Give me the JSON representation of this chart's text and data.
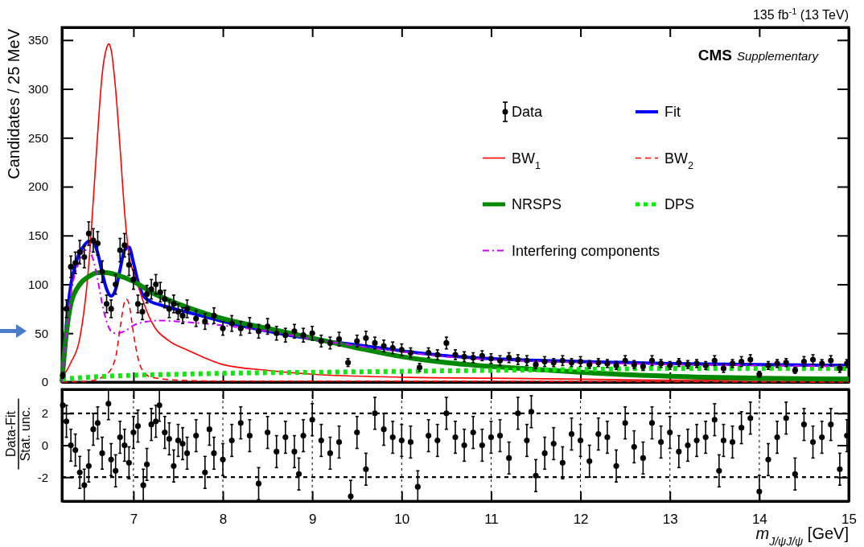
{
  "chart_data": [
    {
      "type": "line",
      "ylabel": "Candidates / 25 MeV",
      "xlim": [
        6.2,
        15
      ],
      "xticks": [
        7,
        8,
        9,
        10,
        11,
        12,
        13,
        14,
        15
      ],
      "ylim": [
        0,
        363
      ],
      "yticks": [
        0,
        50,
        100,
        150,
        200,
        250,
        300,
        350
      ],
      "tick_labels": "y",
      "legend": "top right",
      "annotations": [
        "135 fb$^{-1}$ (13 TeV)",
        "CMS",
        "Supplementary"
      ],
      "series": [
        {
          "name": "Data",
          "type": "scatter",
          "marker": "circle",
          "color": "#000000",
          "x": [
            6.21,
            6.25,
            6.3,
            6.35,
            6.4,
            6.45,
            6.5,
            6.55,
            6.6,
            6.65,
            6.7,
            6.75,
            6.8,
            6.85,
            6.9,
            6.95,
            7.0,
            7.05,
            7.1,
            7.15,
            7.2,
            7.25,
            7.3,
            7.35,
            7.4,
            7.45,
            7.5,
            7.55,
            7.6,
            7.7,
            7.8,
            7.9,
            8.0,
            8.1,
            8.2,
            8.3,
            8.4,
            8.5,
            8.6,
            8.7,
            8.8,
            8.9,
            9.0,
            9.1,
            9.2,
            9.3,
            9.4,
            9.5,
            9.6,
            9.7,
            9.8,
            9.9,
            10.0,
            10.1,
            10.2,
            10.3,
            10.4,
            10.5,
            10.6,
            10.7,
            10.8,
            10.9,
            11.0,
            11.1,
            11.2,
            11.3,
            11.4,
            11.5,
            11.6,
            11.7,
            11.8,
            11.9,
            12.0,
            12.1,
            12.2,
            12.3,
            12.4,
            12.5,
            12.6,
            12.7,
            12.8,
            12.9,
            13.0,
            13.1,
            13.2,
            13.3,
            13.4,
            13.5,
            13.6,
            13.7,
            13.8,
            13.9,
            14.0,
            14.1,
            14.2,
            14.3,
            14.4,
            14.5,
            14.6,
            14.7,
            14.8,
            14.9,
            14.98
          ],
          "values": [
            7,
            75,
            118,
            122,
            133,
            128,
            152,
            145,
            142,
            113,
            80,
            75,
            100,
            135,
            140,
            120,
            105,
            80,
            72,
            90,
            95,
            100,
            92,
            85,
            75,
            80,
            72,
            68,
            75,
            65,
            62,
            68,
            55,
            60,
            55,
            58,
            52,
            57,
            50,
            48,
            52,
            48,
            50,
            42,
            40,
            44,
            20,
            42,
            45,
            40,
            37,
            35,
            33,
            30,
            15,
            30,
            28,
            40,
            28,
            26,
            25,
            27,
            24,
            22,
            25,
            23,
            22,
            18,
            21,
            20,
            22,
            20,
            21,
            18,
            20,
            19,
            17,
            22,
            18,
            16,
            22,
            19,
            17,
            20,
            18,
            19,
            17,
            22,
            14,
            19,
            21,
            23,
            8,
            17,
            19,
            20,
            12,
            21,
            23,
            19,
            22,
            14,
            19
          ],
          "errors": [
            3,
            9,
            11,
            11,
            12,
            11,
            12,
            12,
            12,
            11,
            9,
            9,
            10,
            12,
            12,
            11,
            10,
            9,
            8,
            9,
            10,
            10,
            10,
            9,
            9,
            9,
            8,
            8,
            9,
            8,
            8,
            8,
            7,
            8,
            7,
            8,
            7,
            8,
            7,
            7,
            7,
            7,
            7,
            6,
            6,
            7,
            4,
            6,
            7,
            6,
            6,
            6,
            6,
            5,
            4,
            5,
            5,
            6,
            5,
            5,
            5,
            5,
            5,
            5,
            5,
            5,
            5,
            4,
            5,
            4,
            5,
            4,
            5,
            4,
            4,
            4,
            4,
            5,
            4,
            4,
            5,
            4,
            4,
            4,
            4,
            4,
            4,
            5,
            4,
            4,
            5,
            5,
            3,
            4,
            4,
            4,
            3,
            5,
            5,
            4,
            5,
            4,
            4
          ]
        },
        {
          "name": "Fit",
          "type": "line",
          "line_style": "solid",
          "color": "#0000ff",
          "x": [
            6.2,
            6.25,
            6.3,
            6.35,
            6.4,
            6.45,
            6.5,
            6.55,
            6.6,
            6.65,
            6.7,
            6.75,
            6.8,
            6.85,
            6.9,
            6.95,
            7.0,
            7.05,
            7.1,
            7.2,
            7.3,
            7.5,
            7.75,
            8.0,
            8.5,
            9.0,
            9.5,
            10.0,
            10.5,
            11,
            12,
            13,
            14,
            15
          ],
          "values": [
            0,
            60,
            100,
            120,
            133,
            140,
            144,
            143,
            132,
            112,
            95,
            88,
            95,
            115,
            135,
            138,
            122,
            103,
            90,
            82,
            79,
            74,
            68,
            62,
            52,
            44,
            38,
            32,
            27,
            24,
            21,
            19,
            18,
            17
          ]
        },
        {
          "name": "BW$_{1}$",
          "type": "line",
          "line_style": "solid",
          "color": "#ff0000",
          "x": [
            6.2,
            6.3,
            6.4,
            6.5,
            6.55,
            6.6,
            6.65,
            6.7,
            6.725,
            6.75,
            6.8,
            6.85,
            6.9,
            6.95,
            7.0,
            7.05,
            7.1,
            7.2,
            7.4,
            7.6,
            8.0,
            8.5,
            9,
            10,
            11,
            12,
            13,
            14,
            15
          ],
          "values": [
            4,
            20,
            45,
            120,
            185,
            255,
            315,
            342,
            346,
            340,
            300,
            240,
            175,
            130,
            112,
            100,
            85,
            62,
            42,
            33,
            18,
            12,
            8,
            5,
            4,
            3,
            2,
            2,
            1
          ]
        },
        {
          "name": "BW$_{2}$",
          "type": "line",
          "line_style": "dashed",
          "color": "#ff0000",
          "x": [
            6.2,
            6.5,
            6.7,
            6.8,
            6.85,
            6.9,
            6.92,
            6.95,
            7.0,
            7.05,
            7.1,
            7.2,
            7.5,
            8,
            9,
            15
          ],
          "values": [
            0,
            1,
            8,
            25,
            55,
            82,
            85,
            80,
            50,
            25,
            12,
            5,
            2,
            1,
            1,
            0
          ]
        },
        {
          "name": "NRSPS",
          "type": "line",
          "line_style": "solid",
          "color": "#008800",
          "x": [
            6.2,
            6.25,
            6.3,
            6.4,
            6.5,
            6.6,
            6.7,
            6.8,
            7.0,
            7.2,
            7.5,
            8.0,
            8.5,
            9.0,
            9.5,
            10.0,
            10.5,
            11,
            11.5,
            12,
            13,
            14,
            15
          ],
          "values": [
            0,
            50,
            80,
            100,
            108,
            112,
            112,
            110,
            103,
            92,
            80,
            65,
            55,
            45,
            35,
            26,
            20,
            16,
            13,
            10,
            6,
            4,
            3
          ]
        },
        {
          "name": "DPS",
          "type": "line",
          "line_style": "dotted",
          "color": "#00ee00",
          "x": [
            6.2,
            6.5,
            7.0,
            7.5,
            8.0,
            9,
            10,
            11,
            12,
            13,
            14,
            15
          ],
          "values": [
            3,
            5,
            7,
            8,
            9,
            10,
            11,
            12,
            13,
            14,
            14,
            14
          ]
        },
        {
          "name": "Interfering components",
          "type": "line",
          "line_style": "dashdot",
          "color": "#cc00ff",
          "x": [
            6.2,
            6.3,
            6.4,
            6.45,
            6.5,
            6.55,
            6.6,
            6.65,
            6.7,
            6.75,
            6.8,
            6.9,
            7.0,
            7.1,
            7.3,
            7.5,
            8,
            8.5,
            9,
            9.5,
            10,
            10.5,
            11,
            12,
            13,
            14,
            15
          ],
          "values": [
            0,
            90,
            125,
            135,
            135,
            125,
            105,
            80,
            62,
            52,
            50,
            52,
            58,
            61,
            63,
            62,
            58,
            52,
            44,
            37,
            31,
            26,
            23,
            20,
            18,
            17,
            16
          ]
        }
      ]
    },
    {
      "type": "scatter",
      "marker": "circle",
      "xlabel": "m$_{J/ψJ/ψ}$ [GeV]",
      "ylabel": "Data-Fit\nStat. unc.",
      "xlim": [
        6.2,
        15
      ],
      "xticks": [
        7,
        8,
        9,
        10,
        11,
        12,
        13,
        14,
        15
      ],
      "ylim": [
        -3.5,
        3.5
      ],
      "yticks": [
        -2,
        0,
        2
      ],
      "grid": "x",
      "ref_lines": [
        {
          "axis": "y",
          "value": 2,
          "line_style": "dotted"
        },
        {
          "axis": "y",
          "value": -2,
          "line_style": "dotted"
        }
      ],
      "series": [
        {
          "color": "#000000",
          "x": [
            6.21,
            6.25,
            6.3,
            6.35,
            6.4,
            6.45,
            6.5,
            6.55,
            6.6,
            6.65,
            6.72,
            6.75,
            6.8,
            6.85,
            6.9,
            6.95,
            7.0,
            7.05,
            7.11,
            7.15,
            7.2,
            7.25,
            7.29,
            7.35,
            7.4,
            7.45,
            7.5,
            7.55,
            7.6,
            7.7,
            7.8,
            7.85,
            7.9,
            8.0,
            8.1,
            8.2,
            8.3,
            8.4,
            8.5,
            8.6,
            8.7,
            8.8,
            8.85,
            8.9,
            9.0,
            9.1,
            9.2,
            9.3,
            9.43,
            9.5,
            9.6,
            9.7,
            9.8,
            9.9,
            10.0,
            10.1,
            10.18,
            10.3,
            10.4,
            10.5,
            10.6,
            10.7,
            10.8,
            10.9,
            11.0,
            11.1,
            11.2,
            11.3,
            11.4,
            11.45,
            11.5,
            11.6,
            11.7,
            11.8,
            11.9,
            12.0,
            12.1,
            12.2,
            12.3,
            12.4,
            12.5,
            12.6,
            12.7,
            12.8,
            12.9,
            13.0,
            13.1,
            13.2,
            13.3,
            13.4,
            13.5,
            13.55,
            13.6,
            13.7,
            13.8,
            13.9,
            14.0,
            14.1,
            14.2,
            14.3,
            14.4,
            14.5,
            14.6,
            14.7,
            14.8,
            14.9,
            14.98
          ],
          "values": [
            2.5,
            1.5,
            0,
            -0.3,
            -1.7,
            -2.5,
            -1.3,
            1.0,
            1.4,
            -0.5,
            2.6,
            -0.9,
            -1.6,
            0.5,
            0,
            -1.1,
            0.8,
            1.2,
            -2.5,
            -1.2,
            1.3,
            1.5,
            2.5,
            0.8,
            0.4,
            -1.3,
            0.3,
            0.1,
            -0.5,
            0.6,
            -1.7,
            1.0,
            -0.5,
            -0.9,
            0.3,
            1.4,
            0.6,
            -2.4,
            0.8,
            -0.4,
            0.5,
            -0.4,
            -1.8,
            0.6,
            1.6,
            0.3,
            -0.5,
            0.2,
            -3.2,
            0.8,
            -1.5,
            2.0,
            1.0,
            0.5,
            0.3,
            0.2,
            -2.6,
            0.6,
            0.3,
            2.0,
            0.5,
            0,
            0.8,
            0,
            0.5,
            0.6,
            -0.8,
            2.0,
            0.3,
            2.1,
            -1.9,
            -0.5,
            0.1,
            -1.1,
            0.7,
            0.3,
            -1.0,
            0.7,
            0.5,
            -1.3,
            1.4,
            -0.1,
            -0.8,
            1.4,
            0.2,
            0.8,
            -0.4,
            0,
            0.3,
            0.5,
            1.6,
            -1.6,
            0.3,
            0.2,
            1.1,
            1.7,
            -2.9,
            -0.9,
            0.5,
            1.7,
            -1.8,
            1.3,
            0.2,
            0.5,
            1.3,
            -1.5,
            0.6
          ],
          "errors": [
            1,
            1,
            1,
            1,
            1,
            1,
            1,
            1,
            1,
            1,
            [
              1.6,
              3.5
            ],
            1,
            1,
            1,
            1,
            1,
            1,
            1,
            1,
            1,
            1,
            1,
            1,
            1,
            1,
            1,
            1,
            1,
            1,
            1,
            1,
            1,
            1,
            1,
            1,
            1,
            1,
            1,
            1,
            1,
            1,
            1,
            1,
            1,
            1,
            1,
            1,
            1,
            [
              -3.5,
              -2.2
            ],
            1,
            1,
            1,
            1,
            1,
            1,
            1,
            [
              -3.5,
              -1.6
            ],
            1,
            1,
            1,
            1,
            1,
            1,
            1,
            1,
            1,
            1,
            1,
            1,
            1,
            1,
            1,
            1,
            1,
            1,
            1,
            1,
            1,
            1,
            1,
            1,
            1,
            1,
            1,
            1,
            1,
            1,
            1,
            1,
            1,
            1,
            1,
            1,
            1,
            1,
            1,
            [
              -3.5,
              -1.9
            ],
            1,
            1,
            1,
            1,
            1,
            1,
            1,
            1,
            1,
            1
          ]
        }
      ]
    }
  ]
}
